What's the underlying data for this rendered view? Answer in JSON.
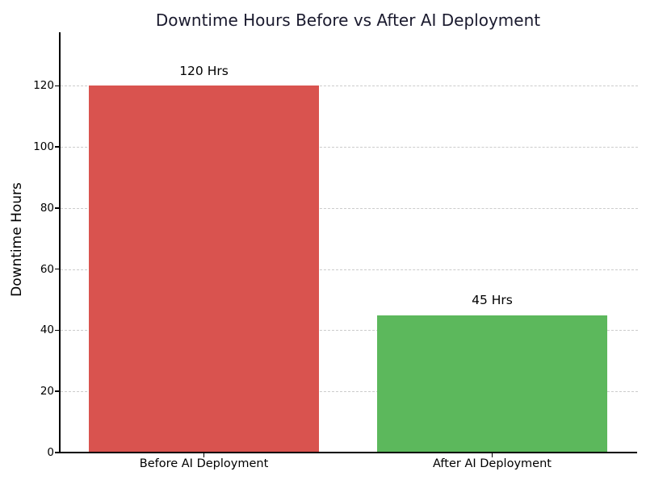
{
  "chart_data": {
    "type": "bar",
    "title": "Downtime Hours Before vs After AI Deployment",
    "xlabel": "",
    "ylabel": "Downtime Hours",
    "categories": [
      "Before AI Deployment",
      "After AI Deployment"
    ],
    "values": [
      120,
      45
    ],
    "bar_labels": [
      "120 Hrs",
      "45 Hrs"
    ],
    "bar_colors": [
      "#d9534f",
      "#5cb85c"
    ],
    "yticks": [
      0,
      20,
      40,
      60,
      80,
      100,
      120
    ],
    "ylim": [
      0,
      137.5
    ],
    "grid": "horizontal-dashed",
    "legend": "none",
    "colors": {
      "title_text": "#1a1a2e",
      "axis_line": "#000000",
      "tick_text": "#000000",
      "grid_line": "#cccccc",
      "background": "#ffffff"
    }
  }
}
